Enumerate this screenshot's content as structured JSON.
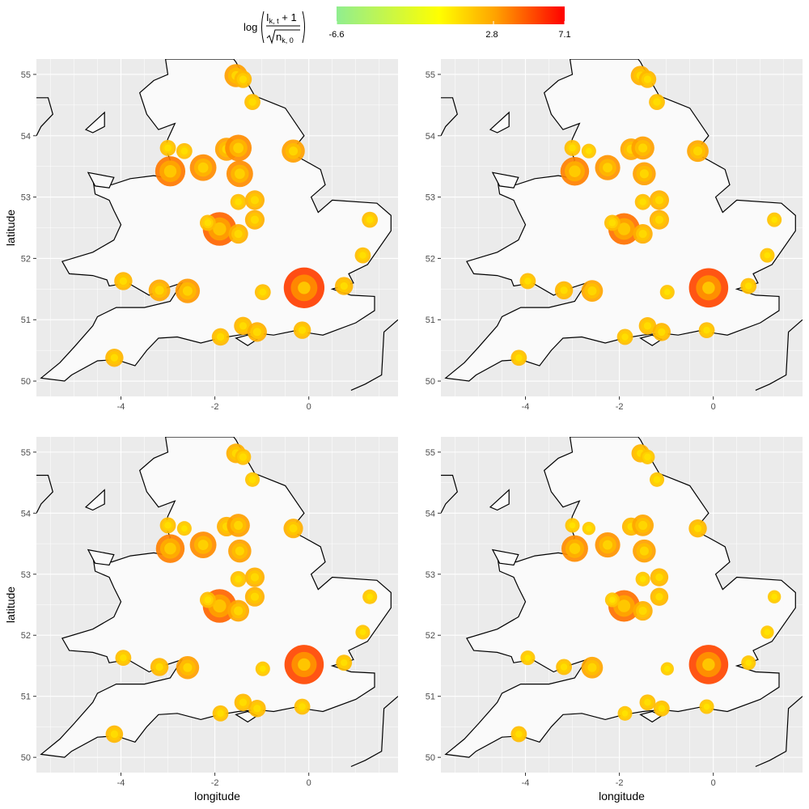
{
  "legend": {
    "formula": {
      "log": "log",
      "numerator_base": "I",
      "numerator_sub": "k, t",
      "numerator_rest": " + 1",
      "denominator_base": "n",
      "denominator_sub": "k, 0"
    },
    "min_label": "-6.6",
    "mid_label": "2.8",
    "max_label": "7.1",
    "range": [
      -6.6,
      7.1
    ],
    "mid_value": 2.8,
    "gradient_colors": [
      "#90ee90",
      "#ffff00",
      "#ffa500",
      "#ff0000"
    ]
  },
  "colors": {
    "panel_bg": "#ebebeb",
    "land": "#fafafa",
    "coast": "#000000",
    "grid": "#ffffff"
  },
  "chart_data": [
    {
      "type": "scatter",
      "panel": 1,
      "title": "",
      "xlabel": "",
      "ylabel": "latitude",
      "xlim": [
        -5.8,
        1.9
      ],
      "ylim": [
        49.75,
        55.25
      ],
      "x_ticks": [
        -4,
        -2,
        0
      ],
      "y_ticks": [
        50,
        51,
        52,
        53,
        54,
        55
      ],
      "grid": true,
      "points": [
        {
          "x": -0.1,
          "y": 51.52,
          "outer": 5.5,
          "mid": 3.5,
          "inner": 1.5
        },
        {
          "x": -1.55,
          "y": 54.98,
          "outer": 3.0,
          "mid": 2.0,
          "inner": 1.0
        },
        {
          "x": -1.4,
          "y": 54.92,
          "outer": 2.2,
          "mid": 1.5,
          "inner": 0.8
        },
        {
          "x": -1.2,
          "y": 54.55,
          "outer": 2.0,
          "mid": 1.4,
          "inner": 0.8
        },
        {
          "x": -3.0,
          "y": 53.8,
          "outer": 2.0,
          "mid": 1.3,
          "inner": 0.7
        },
        {
          "x": -2.65,
          "y": 53.75,
          "outer": 2.0,
          "mid": 1.3,
          "inner": 0.7
        },
        {
          "x": -1.75,
          "y": 53.78,
          "outer": 3.0,
          "mid": 2.0,
          "inner": 1.0
        },
        {
          "x": -1.5,
          "y": 53.8,
          "outer": 3.5,
          "mid": 2.3,
          "inner": 1.2
        },
        {
          "x": -0.33,
          "y": 53.75,
          "outer": 3.0,
          "mid": 2.0,
          "inner": 1.0
        },
        {
          "x": -2.95,
          "y": 53.42,
          "outer": 4.0,
          "mid": 2.8,
          "inner": 1.5
        },
        {
          "x": -2.25,
          "y": 53.48,
          "outer": 3.5,
          "mid": 2.3,
          "inner": 1.2
        },
        {
          "x": -1.47,
          "y": 53.38,
          "outer": 3.5,
          "mid": 2.3,
          "inner": 1.2
        },
        {
          "x": -1.15,
          "y": 52.95,
          "outer": 2.5,
          "mid": 1.7,
          "inner": 0.9
        },
        {
          "x": -1.5,
          "y": 52.92,
          "outer": 2.0,
          "mid": 1.3,
          "inner": 0.7
        },
        {
          "x": -1.15,
          "y": 52.63,
          "outer": 2.5,
          "mid": 1.7,
          "inner": 0.9
        },
        {
          "x": -1.9,
          "y": 52.48,
          "outer": 4.5,
          "mid": 3.0,
          "inner": 1.6
        },
        {
          "x": -1.5,
          "y": 52.4,
          "outer": 2.5,
          "mid": 1.7,
          "inner": 0.9
        },
        {
          "x": -2.15,
          "y": 52.58,
          "outer": 2.0,
          "mid": 1.3,
          "inner": 0.7
        },
        {
          "x": 1.3,
          "y": 52.63,
          "outer": 2.0,
          "mid": 1.3,
          "inner": 0.7
        },
        {
          "x": 1.15,
          "y": 52.05,
          "outer": 2.0,
          "mid": 1.3,
          "inner": 0.7
        },
        {
          "x": 0.75,
          "y": 51.55,
          "outer": 2.3,
          "mid": 1.6,
          "inner": 0.8
        },
        {
          "x": -3.95,
          "y": 51.63,
          "outer": 2.3,
          "mid": 1.6,
          "inner": 0.8
        },
        {
          "x": -3.18,
          "y": 51.48,
          "outer": 2.8,
          "mid": 1.9,
          "inner": 1.0
        },
        {
          "x": -2.58,
          "y": 51.47,
          "outer": 3.2,
          "mid": 2.2,
          "inner": 1.1
        },
        {
          "x": -0.98,
          "y": 51.45,
          "outer": 2.0,
          "mid": 1.3,
          "inner": 0.7
        },
        {
          "x": -1.4,
          "y": 50.9,
          "outer": 2.3,
          "mid": 1.6,
          "inner": 0.8
        },
        {
          "x": -1.1,
          "y": 50.8,
          "outer": 2.5,
          "mid": 1.7,
          "inner": 0.9
        },
        {
          "x": -1.88,
          "y": 50.72,
          "outer": 2.2,
          "mid": 1.5,
          "inner": 0.8
        },
        {
          "x": -0.14,
          "y": 50.83,
          "outer": 2.2,
          "mid": 1.5,
          "inner": 0.8
        },
        {
          "x": -4.14,
          "y": 50.38,
          "outer": 2.3,
          "mid": 1.6,
          "inner": 0.8
        }
      ]
    },
    {
      "type": "scatter",
      "panel": 2,
      "title": "",
      "xlabel": "",
      "ylabel": "",
      "xlim": [
        -5.8,
        1.9
      ],
      "ylim": [
        49.75,
        55.25
      ],
      "x_ticks": [
        -4,
        -2,
        0
      ],
      "y_ticks": [
        50,
        51,
        52,
        53,
        54,
        55
      ],
      "grid": true,
      "points": [
        {
          "x": -0.1,
          "y": 51.52,
          "outer": 5.3,
          "mid": 3.3,
          "inner": 1.5
        },
        {
          "x": -1.55,
          "y": 54.98,
          "outer": 2.5,
          "mid": 1.7,
          "inner": 0.9
        },
        {
          "x": -1.4,
          "y": 54.92,
          "outer": 2.2,
          "mid": 1.5,
          "inner": 0.8
        },
        {
          "x": -1.2,
          "y": 54.55,
          "outer": 2.0,
          "mid": 1.4,
          "inner": 0.8
        },
        {
          "x": -3.0,
          "y": 53.8,
          "outer": 2.0,
          "mid": 1.3,
          "inner": 0.7
        },
        {
          "x": -2.65,
          "y": 53.75,
          "outer": 1.8,
          "mid": 1.2,
          "inner": 0.6
        },
        {
          "x": -1.75,
          "y": 53.78,
          "outer": 2.8,
          "mid": 1.9,
          "inner": 1.0
        },
        {
          "x": -1.5,
          "y": 53.8,
          "outer": 3.0,
          "mid": 2.0,
          "inner": 1.0
        },
        {
          "x": -0.33,
          "y": 53.75,
          "outer": 2.8,
          "mid": 1.9,
          "inner": 1.0
        },
        {
          "x": -2.95,
          "y": 53.42,
          "outer": 3.8,
          "mid": 2.6,
          "inner": 1.4
        },
        {
          "x": -2.25,
          "y": 53.48,
          "outer": 3.3,
          "mid": 2.2,
          "inner": 1.1
        },
        {
          "x": -1.47,
          "y": 53.38,
          "outer": 3.0,
          "mid": 2.0,
          "inner": 1.0
        },
        {
          "x": -1.15,
          "y": 52.95,
          "outer": 2.5,
          "mid": 1.7,
          "inner": 0.9
        },
        {
          "x": -1.5,
          "y": 52.92,
          "outer": 2.0,
          "mid": 1.3,
          "inner": 0.7
        },
        {
          "x": -1.15,
          "y": 52.63,
          "outer": 2.5,
          "mid": 1.7,
          "inner": 0.9
        },
        {
          "x": -1.9,
          "y": 52.48,
          "outer": 4.2,
          "mid": 2.8,
          "inner": 1.5
        },
        {
          "x": -1.5,
          "y": 52.4,
          "outer": 2.5,
          "mid": 1.7,
          "inner": 0.9
        },
        {
          "x": -2.15,
          "y": 52.58,
          "outer": 2.0,
          "mid": 1.3,
          "inner": 0.7
        },
        {
          "x": 1.3,
          "y": 52.63,
          "outer": 1.8,
          "mid": 1.2,
          "inner": 0.6
        },
        {
          "x": 1.15,
          "y": 52.05,
          "outer": 1.8,
          "mid": 1.2,
          "inner": 0.6
        },
        {
          "x": 0.75,
          "y": 51.55,
          "outer": 2.0,
          "mid": 1.4,
          "inner": 0.7
        },
        {
          "x": -3.95,
          "y": 51.63,
          "outer": 2.0,
          "mid": 1.4,
          "inner": 0.7
        },
        {
          "x": -3.18,
          "y": 51.48,
          "outer": 2.3,
          "mid": 1.6,
          "inner": 0.8
        },
        {
          "x": -2.58,
          "y": 51.47,
          "outer": 2.8,
          "mid": 1.9,
          "inner": 1.0
        },
        {
          "x": -0.98,
          "y": 51.45,
          "outer": 1.8,
          "mid": 1.2,
          "inner": 0.6
        },
        {
          "x": -1.4,
          "y": 50.9,
          "outer": 2.2,
          "mid": 1.5,
          "inner": 0.8
        },
        {
          "x": -1.1,
          "y": 50.8,
          "outer": 2.3,
          "mid": 1.6,
          "inner": 0.8
        },
        {
          "x": -1.88,
          "y": 50.72,
          "outer": 2.0,
          "mid": 1.4,
          "inner": 0.7
        },
        {
          "x": -0.14,
          "y": 50.83,
          "outer": 2.0,
          "mid": 1.4,
          "inner": 0.7
        },
        {
          "x": -4.14,
          "y": 50.38,
          "outer": 2.0,
          "mid": 1.4,
          "inner": 0.7
        }
      ]
    },
    {
      "type": "scatter",
      "panel": 3,
      "title": "",
      "xlabel": "longitude",
      "ylabel": "latitude",
      "xlim": [
        -5.8,
        1.9
      ],
      "ylim": [
        49.75,
        55.25
      ],
      "x_ticks": [
        -4,
        -2,
        0
      ],
      "y_ticks": [
        50,
        51,
        52,
        53,
        54,
        55
      ],
      "grid": true,
      "points": [
        {
          "x": -0.1,
          "y": 51.52,
          "outer": 5.3,
          "mid": 3.3,
          "inner": 1.5
        },
        {
          "x": -1.55,
          "y": 54.98,
          "outer": 2.5,
          "mid": 1.7,
          "inner": 0.9
        },
        {
          "x": -1.4,
          "y": 54.92,
          "outer": 2.0,
          "mid": 1.4,
          "inner": 0.8
        },
        {
          "x": -1.2,
          "y": 54.55,
          "outer": 1.8,
          "mid": 1.2,
          "inner": 0.7
        },
        {
          "x": -3.0,
          "y": 53.8,
          "outer": 2.0,
          "mid": 1.3,
          "inner": 0.7
        },
        {
          "x": -2.65,
          "y": 53.75,
          "outer": 1.8,
          "mid": 1.2,
          "inner": 0.6
        },
        {
          "x": -1.75,
          "y": 53.78,
          "outer": 2.5,
          "mid": 1.7,
          "inner": 0.9
        },
        {
          "x": -1.5,
          "y": 53.8,
          "outer": 3.0,
          "mid": 2.0,
          "inner": 1.0
        },
        {
          "x": -0.33,
          "y": 53.75,
          "outer": 2.5,
          "mid": 1.7,
          "inner": 0.9
        },
        {
          "x": -2.95,
          "y": 53.42,
          "outer": 3.8,
          "mid": 2.6,
          "inner": 1.4
        },
        {
          "x": -2.25,
          "y": 53.48,
          "outer": 3.5,
          "mid": 2.3,
          "inner": 1.2
        },
        {
          "x": -1.47,
          "y": 53.38,
          "outer": 3.0,
          "mid": 2.0,
          "inner": 1.0
        },
        {
          "x": -1.15,
          "y": 52.95,
          "outer": 2.5,
          "mid": 1.7,
          "inner": 0.9
        },
        {
          "x": -1.5,
          "y": 52.92,
          "outer": 2.0,
          "mid": 1.3,
          "inner": 0.7
        },
        {
          "x": -1.15,
          "y": 52.63,
          "outer": 2.5,
          "mid": 1.7,
          "inner": 0.9
        },
        {
          "x": -1.9,
          "y": 52.48,
          "outer": 4.5,
          "mid": 3.0,
          "inner": 1.6
        },
        {
          "x": -1.5,
          "y": 52.4,
          "outer": 2.8,
          "mid": 1.9,
          "inner": 1.0
        },
        {
          "x": -2.15,
          "y": 52.58,
          "outer": 2.0,
          "mid": 1.3,
          "inner": 0.7
        },
        {
          "x": 1.3,
          "y": 52.63,
          "outer": 1.8,
          "mid": 1.2,
          "inner": 0.6
        },
        {
          "x": 1.15,
          "y": 52.05,
          "outer": 1.8,
          "mid": 1.2,
          "inner": 0.6
        },
        {
          "x": 0.75,
          "y": 51.55,
          "outer": 2.0,
          "mid": 1.4,
          "inner": 0.7
        },
        {
          "x": -3.95,
          "y": 51.63,
          "outer": 2.0,
          "mid": 1.4,
          "inner": 0.7
        },
        {
          "x": -3.18,
          "y": 51.48,
          "outer": 2.3,
          "mid": 1.6,
          "inner": 0.8
        },
        {
          "x": -2.58,
          "y": 51.47,
          "outer": 3.0,
          "mid": 2.0,
          "inner": 1.0
        },
        {
          "x": -0.98,
          "y": 51.45,
          "outer": 1.8,
          "mid": 1.2,
          "inner": 0.6
        },
        {
          "x": -1.4,
          "y": 50.9,
          "outer": 2.2,
          "mid": 1.5,
          "inner": 0.8
        },
        {
          "x": -1.1,
          "y": 50.8,
          "outer": 2.2,
          "mid": 1.5,
          "inner": 0.8
        },
        {
          "x": -1.88,
          "y": 50.72,
          "outer": 2.0,
          "mid": 1.3,
          "inner": 0.7
        },
        {
          "x": -0.14,
          "y": 50.83,
          "outer": 2.0,
          "mid": 1.3,
          "inner": 0.7
        },
        {
          "x": -4.14,
          "y": 50.38,
          "outer": 2.2,
          "mid": 1.5,
          "inner": 0.8
        }
      ]
    },
    {
      "type": "scatter",
      "panel": 4,
      "title": "",
      "xlabel": "longitude",
      "ylabel": "",
      "xlim": [
        -5.8,
        1.9
      ],
      "ylim": [
        49.75,
        55.25
      ],
      "x_ticks": [
        -4,
        -2,
        0
      ],
      "y_ticks": [
        50,
        51,
        52,
        53,
        54,
        55
      ],
      "grid": true,
      "points": [
        {
          "x": -0.1,
          "y": 51.52,
          "outer": 5.3,
          "mid": 3.3,
          "inner": 1.5
        },
        {
          "x": -1.55,
          "y": 54.98,
          "outer": 2.3,
          "mid": 1.6,
          "inner": 0.8
        },
        {
          "x": -1.4,
          "y": 54.92,
          "outer": 1.8,
          "mid": 1.2,
          "inner": 0.7
        },
        {
          "x": -1.2,
          "y": 54.55,
          "outer": 1.8,
          "mid": 1.2,
          "inner": 0.7
        },
        {
          "x": -3.0,
          "y": 53.8,
          "outer": 1.8,
          "mid": 1.2,
          "inner": 0.6
        },
        {
          "x": -2.65,
          "y": 53.75,
          "outer": 1.6,
          "mid": 1.1,
          "inner": 0.6
        },
        {
          "x": -1.75,
          "y": 53.78,
          "outer": 2.3,
          "mid": 1.6,
          "inner": 0.8
        },
        {
          "x": -1.5,
          "y": 53.8,
          "outer": 2.8,
          "mid": 1.9,
          "inner": 1.0
        },
        {
          "x": -0.33,
          "y": 53.75,
          "outer": 2.3,
          "mid": 1.6,
          "inner": 0.8
        },
        {
          "x": -2.95,
          "y": 53.42,
          "outer": 3.5,
          "mid": 2.4,
          "inner": 1.3
        },
        {
          "x": -2.25,
          "y": 53.48,
          "outer": 3.3,
          "mid": 2.2,
          "inner": 1.1
        },
        {
          "x": -1.47,
          "y": 53.38,
          "outer": 3.0,
          "mid": 2.0,
          "inner": 1.0
        },
        {
          "x": -1.15,
          "y": 52.95,
          "outer": 2.3,
          "mid": 1.6,
          "inner": 0.8
        },
        {
          "x": -1.5,
          "y": 52.92,
          "outer": 1.8,
          "mid": 1.2,
          "inner": 0.6
        },
        {
          "x": -1.15,
          "y": 52.63,
          "outer": 2.3,
          "mid": 1.6,
          "inner": 0.8
        },
        {
          "x": -1.9,
          "y": 52.48,
          "outer": 4.2,
          "mid": 2.8,
          "inner": 1.5
        },
        {
          "x": -1.5,
          "y": 52.4,
          "outer": 2.5,
          "mid": 1.7,
          "inner": 0.9
        },
        {
          "x": -2.15,
          "y": 52.58,
          "outer": 1.8,
          "mid": 1.2,
          "inner": 0.6
        },
        {
          "x": 1.3,
          "y": 52.63,
          "outer": 1.6,
          "mid": 1.1,
          "inner": 0.6
        },
        {
          "x": 1.15,
          "y": 52.05,
          "outer": 1.6,
          "mid": 1.1,
          "inner": 0.6
        },
        {
          "x": 0.75,
          "y": 51.55,
          "outer": 1.8,
          "mid": 1.2,
          "inner": 0.6
        },
        {
          "x": -3.95,
          "y": 51.63,
          "outer": 1.8,
          "mid": 1.2,
          "inner": 0.6
        },
        {
          "x": -3.18,
          "y": 51.48,
          "outer": 2.0,
          "mid": 1.4,
          "inner": 0.7
        },
        {
          "x": -2.58,
          "y": 51.47,
          "outer": 2.8,
          "mid": 1.9,
          "inner": 1.0
        },
        {
          "x": -0.98,
          "y": 51.45,
          "outer": 1.6,
          "mid": 1.1,
          "inner": 0.6
        },
        {
          "x": -1.4,
          "y": 50.9,
          "outer": 2.0,
          "mid": 1.4,
          "inner": 0.7
        },
        {
          "x": -1.1,
          "y": 50.8,
          "outer": 2.0,
          "mid": 1.4,
          "inner": 0.7
        },
        {
          "x": -1.88,
          "y": 50.72,
          "outer": 1.8,
          "mid": 1.2,
          "inner": 0.6
        },
        {
          "x": -0.14,
          "y": 50.83,
          "outer": 1.8,
          "mid": 1.2,
          "inner": 0.6
        },
        {
          "x": -4.14,
          "y": 50.38,
          "outer": 2.0,
          "mid": 1.4,
          "inner": 0.7
        }
      ]
    }
  ]
}
